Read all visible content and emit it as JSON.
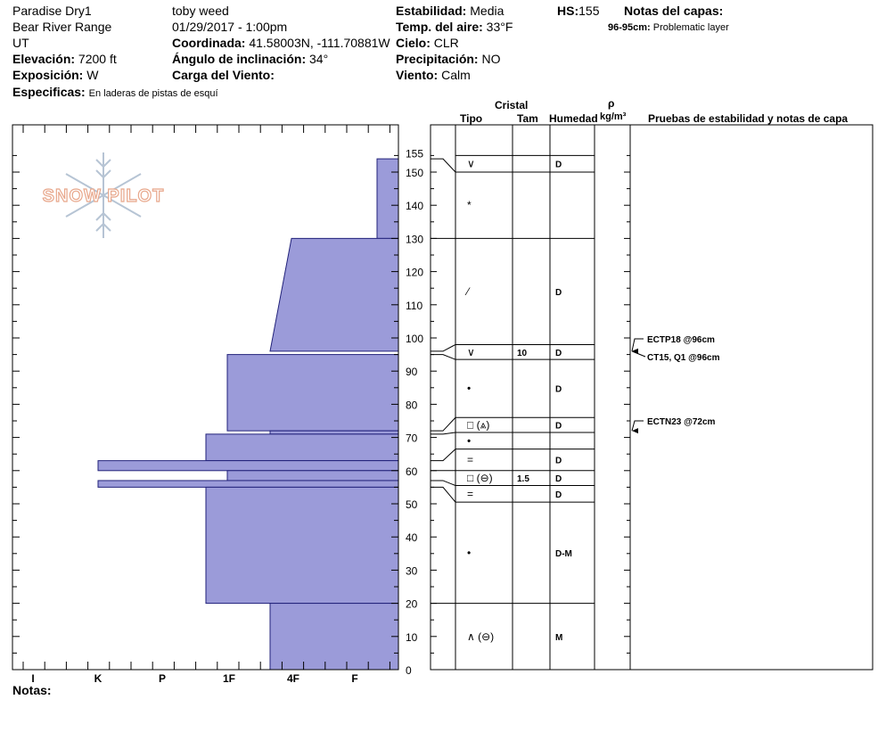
{
  "header": {
    "location": "Paradise Dry1",
    "range": "Bear River Range",
    "state": "UT",
    "elevation_label": "Elevación:",
    "elevation": "7200 ft",
    "aspect_label": "Exposición:",
    "aspect": "W",
    "specifics_label": "Especificas:",
    "specifics": "En laderas de pistas de esquí",
    "observer": "toby weed",
    "datetime": "01/29/2017 - 1:00pm",
    "coord_label": "Coordinada:",
    "coord": "41.58003N, -111.70881W",
    "slope_label": "Ángulo de inclinación:",
    "slope": "34°",
    "wind_load_label": "Carga del Viento:",
    "stability_label": "Estabilidad:",
    "stability": "Media",
    "air_temp_label": "Temp. del aire:",
    "air_temp": "33°F",
    "sky_label": "Cielo:",
    "sky": "CLR",
    "precip_label": "Precipitación:",
    "precip": "NO",
    "wind_label": "Viento:",
    "wind": "Calm",
    "hs_label": "HS:",
    "hs": "155",
    "layer_notes_label": "Notas del capas:",
    "layer_note_depth": "96-95cm:",
    "layer_note_text": "Problematic layer",
    "notes_label": "Notas:"
  },
  "logo_text": "SNOW PILOT",
  "table_headers": {
    "cristal": "Cristal",
    "tipo": "Tipo",
    "tam": "Tam",
    "humedad": "Humedad",
    "rho": "ρ",
    "density_unit": "kg/m³",
    "tests": "Pruebas de estabilidad y notas de capa"
  },
  "hardness_labels": [
    "I",
    "K",
    "P",
    "1F",
    "4F",
    "F"
  ],
  "depth_ticks": [
    0,
    10,
    20,
    30,
    40,
    50,
    60,
    70,
    80,
    90,
    100,
    110,
    120,
    130,
    140,
    150,
    155
  ],
  "colors": {
    "layer_fill": "#9b9bd9",
    "layer_stroke": "#22227a",
    "weak_layer": "#c0143c"
  },
  "chart_data": {
    "type": "snow-profile",
    "y_range": [
      0,
      155
    ],
    "hardness_scale": [
      "F",
      "4F",
      "1F",
      "P",
      "K",
      "I"
    ],
    "layers": [
      {
        "top": 155,
        "bottom": 154,
        "hardness": "F"
      },
      {
        "top": 154,
        "bottom": 130,
        "hardness": "F+"
      },
      {
        "top": 130,
        "bottom": 96,
        "hardness_top": "4F+",
        "hardness_bottom": "4F"
      },
      {
        "top": 96,
        "bottom": 95,
        "hardness": "F",
        "weak": true
      },
      {
        "top": 95,
        "bottom": 72,
        "hardness": "1F"
      },
      {
        "top": 72,
        "bottom": 71,
        "hardness": "4F"
      },
      {
        "top": 71,
        "bottom": 63,
        "hardness": "1F-"
      },
      {
        "top": 63,
        "bottom": 60,
        "hardness": "K"
      },
      {
        "top": 60,
        "bottom": 57,
        "hardness": "1F"
      },
      {
        "top": 57,
        "bottom": 55,
        "hardness": "K"
      },
      {
        "top": 55,
        "bottom": 20,
        "hardness": "1F-"
      },
      {
        "top": 20,
        "bottom": 0,
        "hardness": "4F"
      }
    ]
  },
  "grid_rows": [
    {
      "top": 155,
      "bottom": 150,
      "symbol": "∨",
      "size": "",
      "moisture": "D"
    },
    {
      "top": 150,
      "bottom": 130,
      "symbol": "*",
      "size": "",
      "moisture": ""
    },
    {
      "top": 130,
      "bottom": 98,
      "symbol": "⁄",
      "size": "",
      "moisture": "D"
    },
    {
      "top": 98,
      "bottom": 93.5,
      "symbol": "∨",
      "size": "10",
      "moisture": "D"
    },
    {
      "top": 93.5,
      "bottom": 76,
      "symbol": "•",
      "size": "",
      "moisture": "D"
    },
    {
      "top": 76,
      "bottom": 71.5,
      "symbol": "□ (⩓)",
      "size": "",
      "moisture": "D"
    },
    {
      "top": 71.5,
      "bottom": 66.5,
      "symbol": "•",
      "size": "",
      "moisture": ""
    },
    {
      "top": 66.5,
      "bottom": 60,
      "symbol": "=",
      "size": "",
      "moisture": "D"
    },
    {
      "top": 60,
      "bottom": 55.5,
      "symbol": "□ (⊖)",
      "size": "1.5",
      "moisture": "D"
    },
    {
      "top": 55.5,
      "bottom": 50.5,
      "symbol": "=",
      "size": "",
      "moisture": "D"
    },
    {
      "top": 50.5,
      "bottom": 20,
      "symbol": "•",
      "size": "",
      "moisture": "D-M"
    },
    {
      "top": 20,
      "bottom": 0,
      "symbol": "∧ (⊖)",
      "size": "",
      "moisture": "M"
    }
  ],
  "tests": [
    {
      "depth": 96,
      "label": "ECTP18 @96cm"
    },
    {
      "depth": 96,
      "label": "CT15, Q1 @96cm"
    },
    {
      "depth": 72,
      "label": "ECTN23 @72cm"
    }
  ]
}
